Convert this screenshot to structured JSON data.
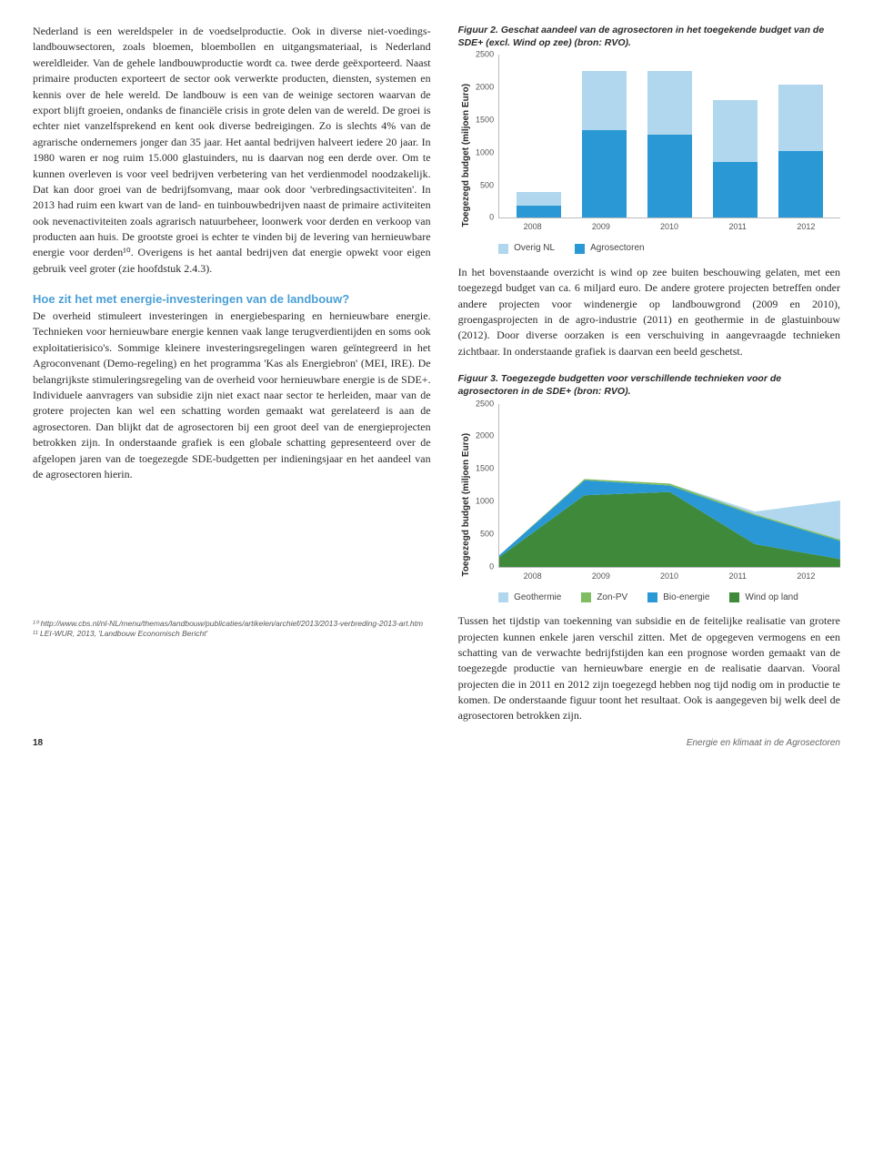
{
  "left": {
    "para1": "Nederland is een wereldspeler in de voedselproductie. Ook in diverse niet-voedings-landbouwsectoren, zoals bloemen, bloembollen en uitgangsmateriaal, is Nederland wereldleider. Van de gehele landbouwproductie wordt ca. twee derde geëxporteerd. Naast primaire producten exporteert de sector ook verwerkte producten, diensten, systemen en kennis over de hele wereld. De landbouw is een van de weinige sectoren waarvan de export blijft groeien, ondanks de financiële crisis in grote delen van de wereld. De groei is echter niet vanzelfsprekend en kent ook diverse bedreigingen. Zo is slechts 4% van de agrarische ondernemers jonger dan 35 jaar. Het aantal bedrijven halveert iedere 20 jaar. In 1980 waren er nog ruim 15.000 glastuinders, nu is daarvan nog een derde over. Om te kunnen overleven is voor veel bedrijven verbetering van het verdienmodel noodzakelijk. Dat kan door groei van de bedrijfsomvang, maar ook door 'verbredingsactiviteiten'. In 2013 had ruim een kwart van de land- en tuinbouwbedrijven naast de primaire activiteiten ook nevenactiviteiten zoals agrarisch natuurbeheer, loonwerk voor derden en verkoop van producten aan huis. De grootste groei is echter te vinden bij de levering van hernieuwbare energie voor derden¹⁰. Overigens is het aantal bedrijven dat energie opwekt voor eigen gebruik veel groter (zie hoofdstuk 2.4.3).",
    "heading": "Hoe zit het met energie-investeringen van de landbouw?",
    "para2": "De overheid stimuleert investeringen in energiebesparing en hernieuwbare energie. Technieken voor hernieuwbare energie kennen vaak lange terugverdientijden en soms ook exploitatierisico's. Sommige kleinere investeringsregelingen waren geïntegreerd in het Agroconvenant (Demo-regeling) en het programma 'Kas als Energiebron' (MEI, IRE). De belangrijkste stimuleringsregeling van de overheid voor hernieuwbare energie is de SDE+. Individuele aanvragers van subsidie zijn niet exact naar sector te herleiden, maar van de grotere projecten kan wel een schatting worden gemaakt wat gerelateerd is aan de agrosectoren. Dan blijkt dat de agrosectoren bij een groot deel van de energieprojecten betrokken zijn. In onderstaande grafiek is een globale schatting gepresenteerd over de afgelopen jaren van de toegezegde SDE-budgetten per indieningsjaar en het aandeel van de agrosectoren hierin.",
    "footnote1": "¹⁰ http://www.cbs.nl/nl-NL/menu/themas/landbouw/publicaties/artikelen/archief/2013/2013-verbreding-2013-art.htm",
    "footnote2": "¹¹ LEI-WUR, 2013, 'Landbouw Economisch Bericht'"
  },
  "right": {
    "fig2_caption": "Figuur 2. Geschat aandeel van de agrosectoren in het toegekende budget van de SDE+ (excl. Wind op zee) (bron: RVO).",
    "fig3_caption": "Figuur 3. Toegezegde budgetten voor verschillende technieken voor de agrosectoren in de SDE+ (bron: RVO).",
    "para_after_fig2": "In het bovenstaande overzicht is wind op zee buiten beschouwing gelaten, met een toegezegd budget van ca. 6 miljard euro. De andere grotere projecten betreffen onder andere projecten voor windenergie op landbouwgrond (2009 en 2010), groengasprojecten in de agro-industrie (2011) en geothermie in de glastuinbouw (2012). Door diverse oorzaken is een verschuiving in aangevraagde technieken zichtbaar. In onderstaande grafiek is daarvan een beeld geschetst.",
    "para_bottom": "Tussen het tijdstip van toekenning van subsidie en de feitelijke realisatie van grotere projecten kunnen enkele jaren verschil zitten. Met de opgegeven vermogens en een schatting van de verwachte bedrijfstijden kan een prognose worden gemaakt van de toegezegde productie van hernieuwbare energie en de realisatie daarvan. Vooral projecten die in 2011 en 2012 zijn toegezegd hebben nog tijd nodig om in productie te komen. De onderstaande figuur toont het resultaat. Ook is aangegeven bij welk deel de agrosectoren betrokken zijn."
  },
  "chart_common": {
    "y_axis_label": "Toegezegd budget (miljoen Euro)",
    "y_ticks": [
      "0",
      "500",
      "1000",
      "1500",
      "2000",
      "2500"
    ],
    "y_max": 2500,
    "x_labels": [
      "2008",
      "2009",
      "2010",
      "2011",
      "2012"
    ]
  },
  "fig2": {
    "colors": {
      "overig": "#b0d7ed",
      "agro": "#2998d4"
    },
    "legend": [
      {
        "label": "Overig NL",
        "color": "#b0d7ed"
      },
      {
        "label": "Agrosectoren",
        "color": "#2998d4"
      }
    ],
    "bars": [
      {
        "agro": 180,
        "overig": 220
      },
      {
        "agro": 1350,
        "overig": 900
      },
      {
        "agro": 1280,
        "overig": 970
      },
      {
        "agro": 850,
        "overig": 950
      },
      {
        "agro": 1020,
        "overig": 1030
      }
    ]
  },
  "fig3": {
    "legend": [
      {
        "label": "Geothermie",
        "color": "#b0d7ed"
      },
      {
        "label": "Zon-PV",
        "color": "#7fbc62"
      },
      {
        "label": "Bio-energie",
        "color": "#2998d4"
      },
      {
        "label": "Wind op land",
        "color": "#3e8a3a"
      }
    ],
    "series": {
      "wind": {
        "color": "#3e8a3a",
        "vals": [
          150,
          1100,
          1150,
          350,
          120
        ]
      },
      "bio": {
        "color": "#2998d4",
        "vals": [
          30,
          230,
          100,
          440,
          280
        ]
      },
      "zon": {
        "color": "#7fbc62",
        "vals": [
          0,
          20,
          30,
          20,
          20
        ]
      },
      "geo": {
        "color": "#b0d7ed",
        "vals": [
          0,
          0,
          0,
          40,
          600
        ]
      }
    }
  },
  "footer": {
    "page": "18",
    "doc_title": "Energie en klimaat in de Agrosectoren"
  }
}
